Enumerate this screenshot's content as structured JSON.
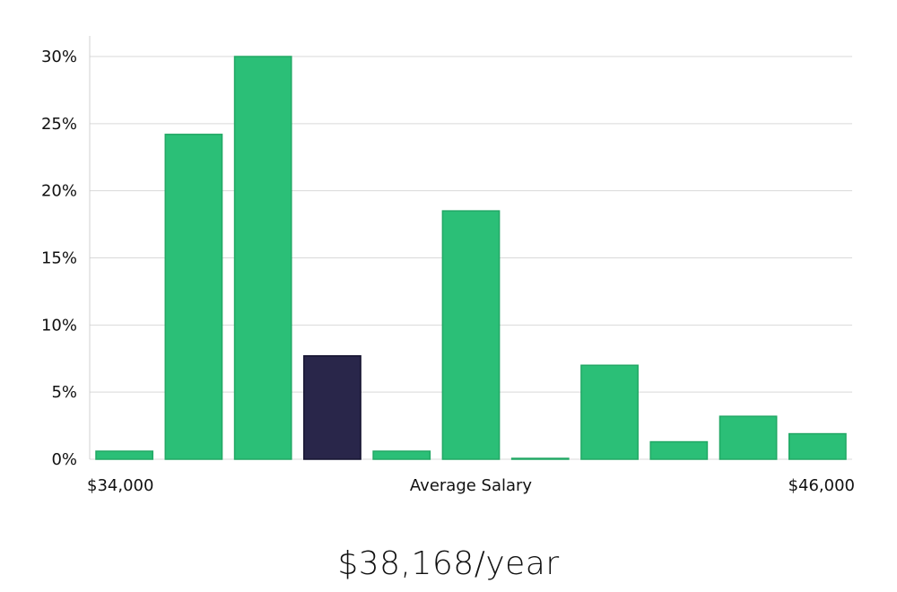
{
  "chart_data": {
    "type": "bar",
    "categories": [
      "1",
      "2",
      "3",
      "4",
      "5",
      "6",
      "7",
      "8",
      "9",
      "10",
      "11"
    ],
    "values": [
      0.6,
      24.2,
      30.0,
      7.7,
      0.6,
      18.5,
      0.05,
      7.0,
      1.3,
      3.2,
      1.9
    ],
    "highlight_index": 3,
    "ylim": [
      0,
      30
    ],
    "y_ticks": [
      0,
      5,
      10,
      15,
      20,
      25,
      30
    ],
    "y_tick_format": "{v}%",
    "x_min_label": "$34,000",
    "x_center_label": "Average Salary",
    "x_max_label": "$46,000",
    "grid": true,
    "colors": {
      "bar": "#2bbf77",
      "bar_stroke": "#22a865",
      "highlight": "#29264a",
      "highlight_stroke": "#151330"
    }
  },
  "salary_caption": "$38,168/year"
}
